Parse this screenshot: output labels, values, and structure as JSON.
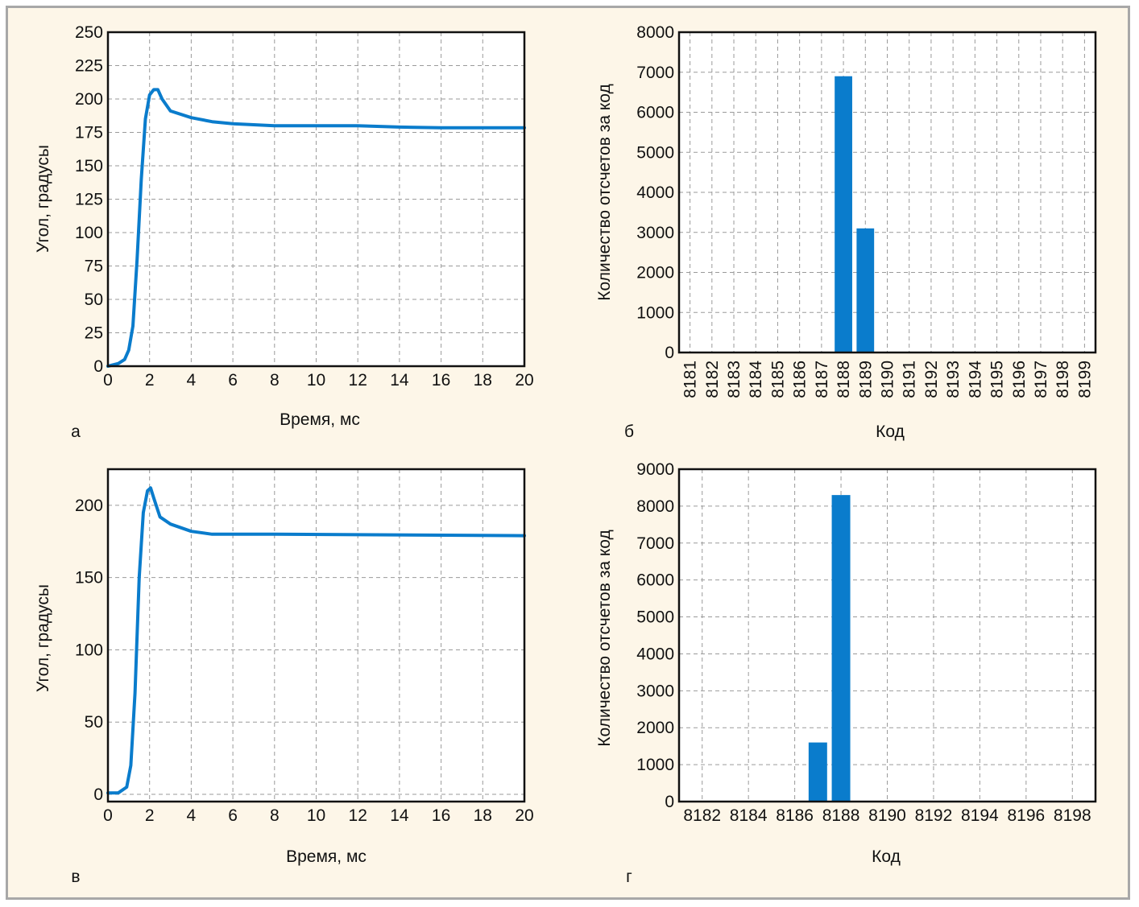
{
  "chart_data": [
    {
      "id": "a",
      "panel_label": "а",
      "type": "line",
      "xlabel": "Время, мс",
      "ylabel": "Угол, градусы",
      "xlim": [
        0,
        20
      ],
      "ylim": [
        0,
        250
      ],
      "xticks": [
        0,
        2,
        4,
        6,
        8,
        10,
        12,
        14,
        16,
        18,
        20
      ],
      "yticks": [
        0,
        25,
        50,
        75,
        100,
        125,
        150,
        175,
        200,
        225,
        250
      ],
      "grid": true,
      "series": [
        {
          "name": "angle",
          "color": "#0a7ccc",
          "x": [
            0,
            0.5,
            0.8,
            1.0,
            1.2,
            1.4,
            1.6,
            1.8,
            2.0,
            2.2,
            2.4,
            2.6,
            3.0,
            4,
            5,
            6,
            8,
            12,
            14,
            16,
            20
          ],
          "y": [
            0,
            2,
            5,
            12,
            30,
            80,
            140,
            185,
            203,
            207,
            207,
            200,
            191,
            186,
            183,
            181.5,
            180,
            180,
            179,
            178.5,
            178.5
          ]
        }
      ]
    },
    {
      "id": "b",
      "panel_label": "б",
      "type": "bar",
      "xlabel": "Код",
      "ylabel": "Количество отсчетов за код",
      "categories": [
        "8181",
        "8182",
        "8183",
        "8184",
        "8185",
        "8186",
        "8187",
        "8188",
        "8189",
        "8190",
        "8191",
        "8192",
        "8193",
        "8194",
        "8195",
        "8196",
        "8197",
        "8198",
        "8199"
      ],
      "values": [
        0,
        0,
        0,
        0,
        0,
        0,
        0,
        6900,
        3100,
        0,
        0,
        0,
        0,
        0,
        0,
        0,
        0,
        0,
        0
      ],
      "ylim": [
        0,
        8000
      ],
      "yticks": [
        0,
        1000,
        2000,
        3000,
        4000,
        5000,
        6000,
        7000,
        8000
      ],
      "grid": true,
      "color": "#0a7ccc"
    },
    {
      "id": "c",
      "panel_label": "в",
      "type": "line",
      "xlabel": "Время, мс",
      "ylabel": "Угол, градусы",
      "xlim": [
        0,
        20
      ],
      "ylim": [
        -5,
        225
      ],
      "xticks": [
        0,
        2,
        4,
        6,
        8,
        10,
        12,
        14,
        16,
        18,
        20
      ],
      "yticks": [
        0,
        50,
        100,
        150,
        200
      ],
      "grid": true,
      "series": [
        {
          "name": "angle",
          "color": "#0a7ccc",
          "x": [
            0,
            0.5,
            0.9,
            1.1,
            1.3,
            1.5,
            1.7,
            1.9,
            2.05,
            2.2,
            2.5,
            3,
            4,
            5,
            8,
            20
          ],
          "y": [
            1,
            1,
            5,
            20,
            70,
            150,
            195,
            210,
            212,
            205,
            192,
            187,
            182,
            180,
            180,
            179
          ]
        }
      ]
    },
    {
      "id": "d",
      "panel_label": "г",
      "type": "bar",
      "xlabel": "Код",
      "ylabel": "Количество отсчетов за код",
      "categories": [
        "8187",
        "8188"
      ],
      "values": [
        1600,
        8300
      ],
      "xlim": [
        8181,
        8199
      ],
      "xticks": [
        8182,
        8184,
        8186,
        8188,
        8190,
        8192,
        8194,
        8196,
        8198
      ],
      "ylim": [
        0,
        9000
      ],
      "yticks": [
        0,
        1000,
        2000,
        3000,
        4000,
        5000,
        6000,
        7000,
        8000,
        9000
      ],
      "grid": true,
      "color": "#0a7ccc"
    }
  ]
}
